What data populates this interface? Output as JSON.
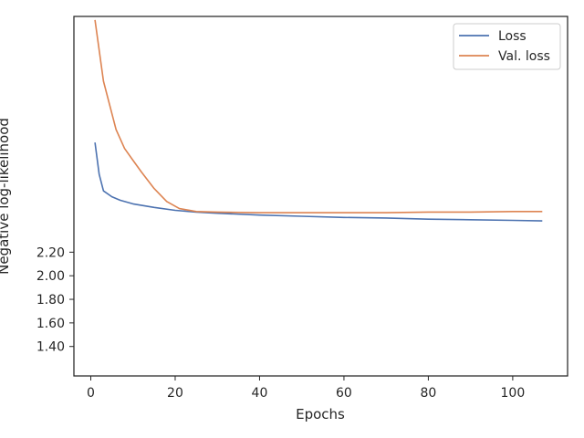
{
  "chart_data": {
    "type": "line",
    "title": "",
    "xlabel": "Epochs",
    "ylabel": "Negative log-likelihood",
    "xlim": [
      -4,
      113
    ],
    "ylim": [
      1.15,
      4.2
    ],
    "x_ticks": [
      0,
      20,
      40,
      60,
      80,
      100
    ],
    "x_tick_labels": [
      "0",
      "20",
      "40",
      "60",
      "80",
      "100"
    ],
    "y_ticks": [
      1.4,
      1.6,
      1.8,
      2.0,
      2.2
    ],
    "y_tick_labels": [
      "1.40",
      "1.60",
      "1.80",
      "2.00",
      "2.20"
    ],
    "legend_position": "top-right",
    "grid": false,
    "series": [
      {
        "name": "Loss",
        "color": "#4c72b0",
        "x": [
          1,
          2,
          3,
          5,
          7,
          10,
          15,
          20,
          25,
          30,
          40,
          50,
          60,
          70,
          80,
          90,
          100,
          107
        ],
        "values": [
          3.13,
          2.86,
          2.72,
          2.67,
          2.64,
          2.61,
          2.58,
          2.555,
          2.54,
          2.53,
          2.515,
          2.505,
          2.495,
          2.49,
          2.48,
          2.475,
          2.47,
          2.465
        ]
      },
      {
        "name": "Val. loss",
        "color": "#dd8452",
        "x": [
          1,
          3,
          6,
          8,
          10,
          12,
          15,
          18,
          21,
          25,
          30,
          40,
          50,
          60,
          70,
          80,
          90,
          100,
          107
        ],
        "values": [
          4.17,
          3.65,
          3.24,
          3.08,
          2.98,
          2.88,
          2.74,
          2.63,
          2.57,
          2.545,
          2.54,
          2.535,
          2.535,
          2.535,
          2.535,
          2.54,
          2.54,
          2.545,
          2.545
        ]
      }
    ]
  }
}
